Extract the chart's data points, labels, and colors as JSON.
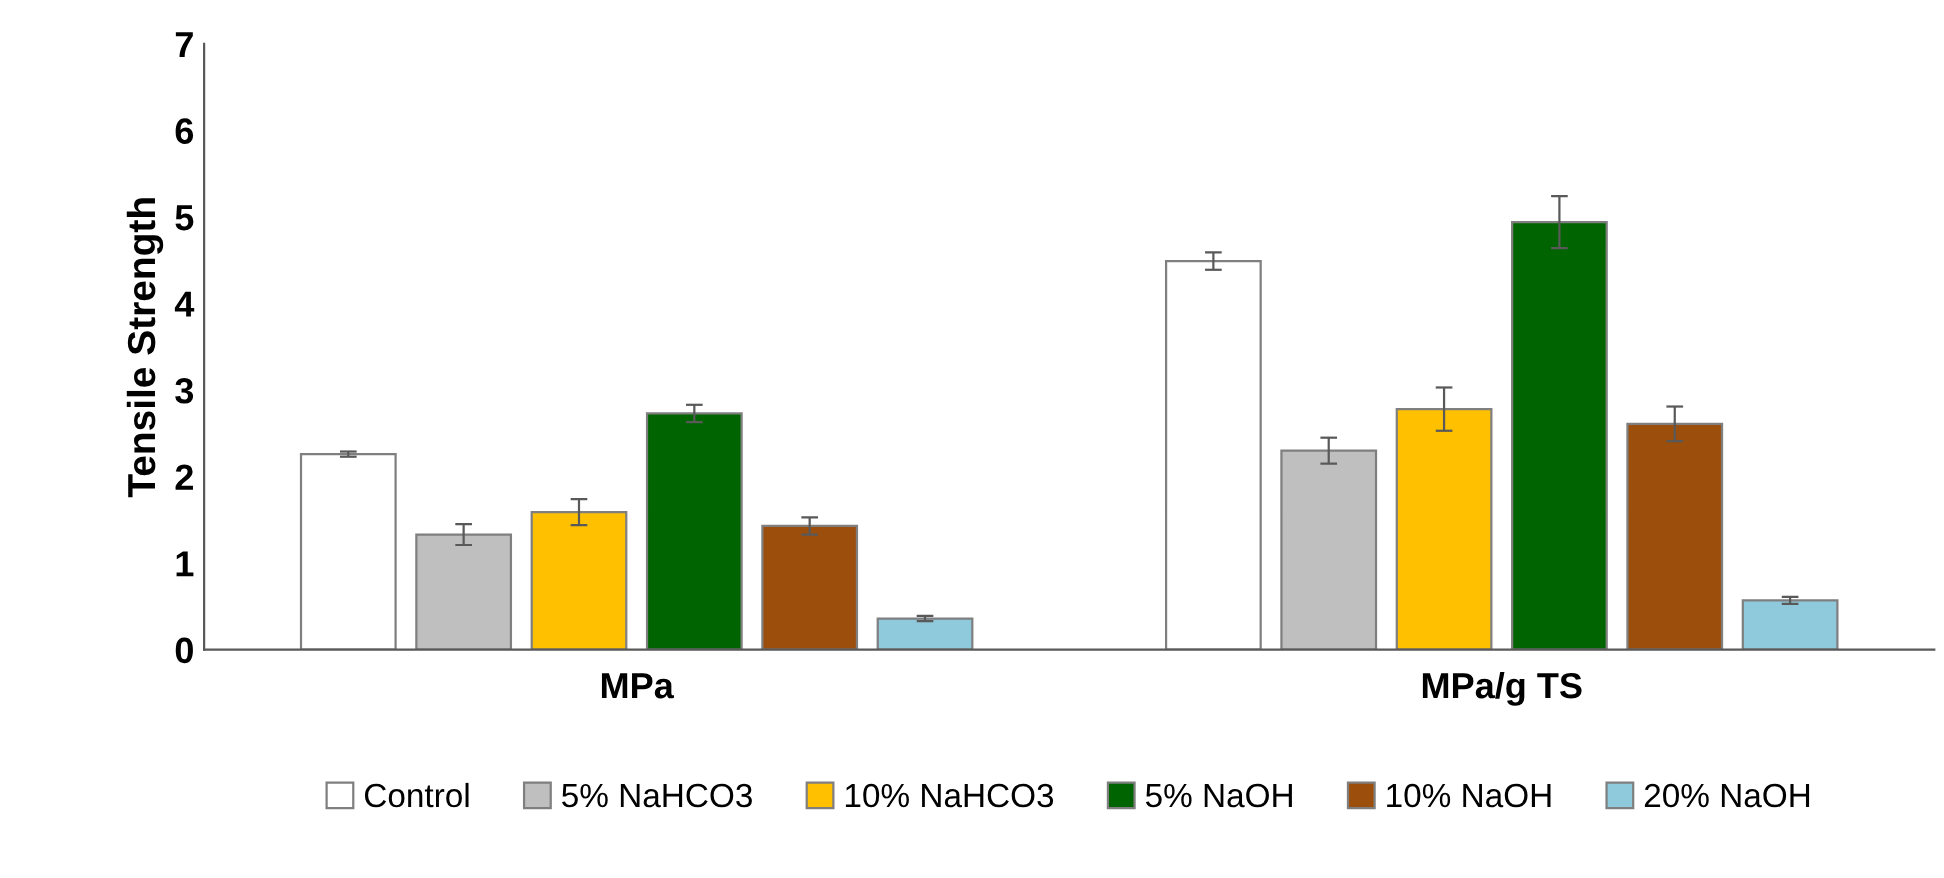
{
  "chart_data": {
    "type": "bar",
    "ylabel": "Tensile Strength",
    "categories": [
      "MPa",
      "MPa/g TS"
    ],
    "series": [
      {
        "name": "Control",
        "color": "#ffffff",
        "values": [
          2.26,
          4.49
        ],
        "errors": [
          0.03,
          0.1
        ]
      },
      {
        "name": "5% NaHCO3",
        "color": "#bfbfbf",
        "values": [
          1.33,
          2.3
        ],
        "errors": [
          0.12,
          0.15
        ]
      },
      {
        "name": "10% NaHCO3",
        "color": "#ffc000",
        "values": [
          1.59,
          2.78
        ],
        "errors": [
          0.15,
          0.25
        ]
      },
      {
        "name": "5% NaOH",
        "color": "#006400",
        "values": [
          2.73,
          4.94
        ],
        "errors": [
          0.1,
          0.3
        ]
      },
      {
        "name": "10% NaOH",
        "color": "#9c4f0d",
        "values": [
          1.43,
          2.61
        ],
        "errors": [
          0.1,
          0.2
        ]
      },
      {
        "name": "20% NaOH",
        "color": "#8fcadc",
        "values": [
          0.36,
          0.57
        ],
        "errors": [
          0.03,
          0.04
        ]
      }
    ],
    "ylim": [
      0,
      7
    ],
    "yticks": [
      0,
      1,
      2,
      3,
      4,
      5,
      6,
      7
    ],
    "grid": false,
    "legend": "bottom"
  }
}
